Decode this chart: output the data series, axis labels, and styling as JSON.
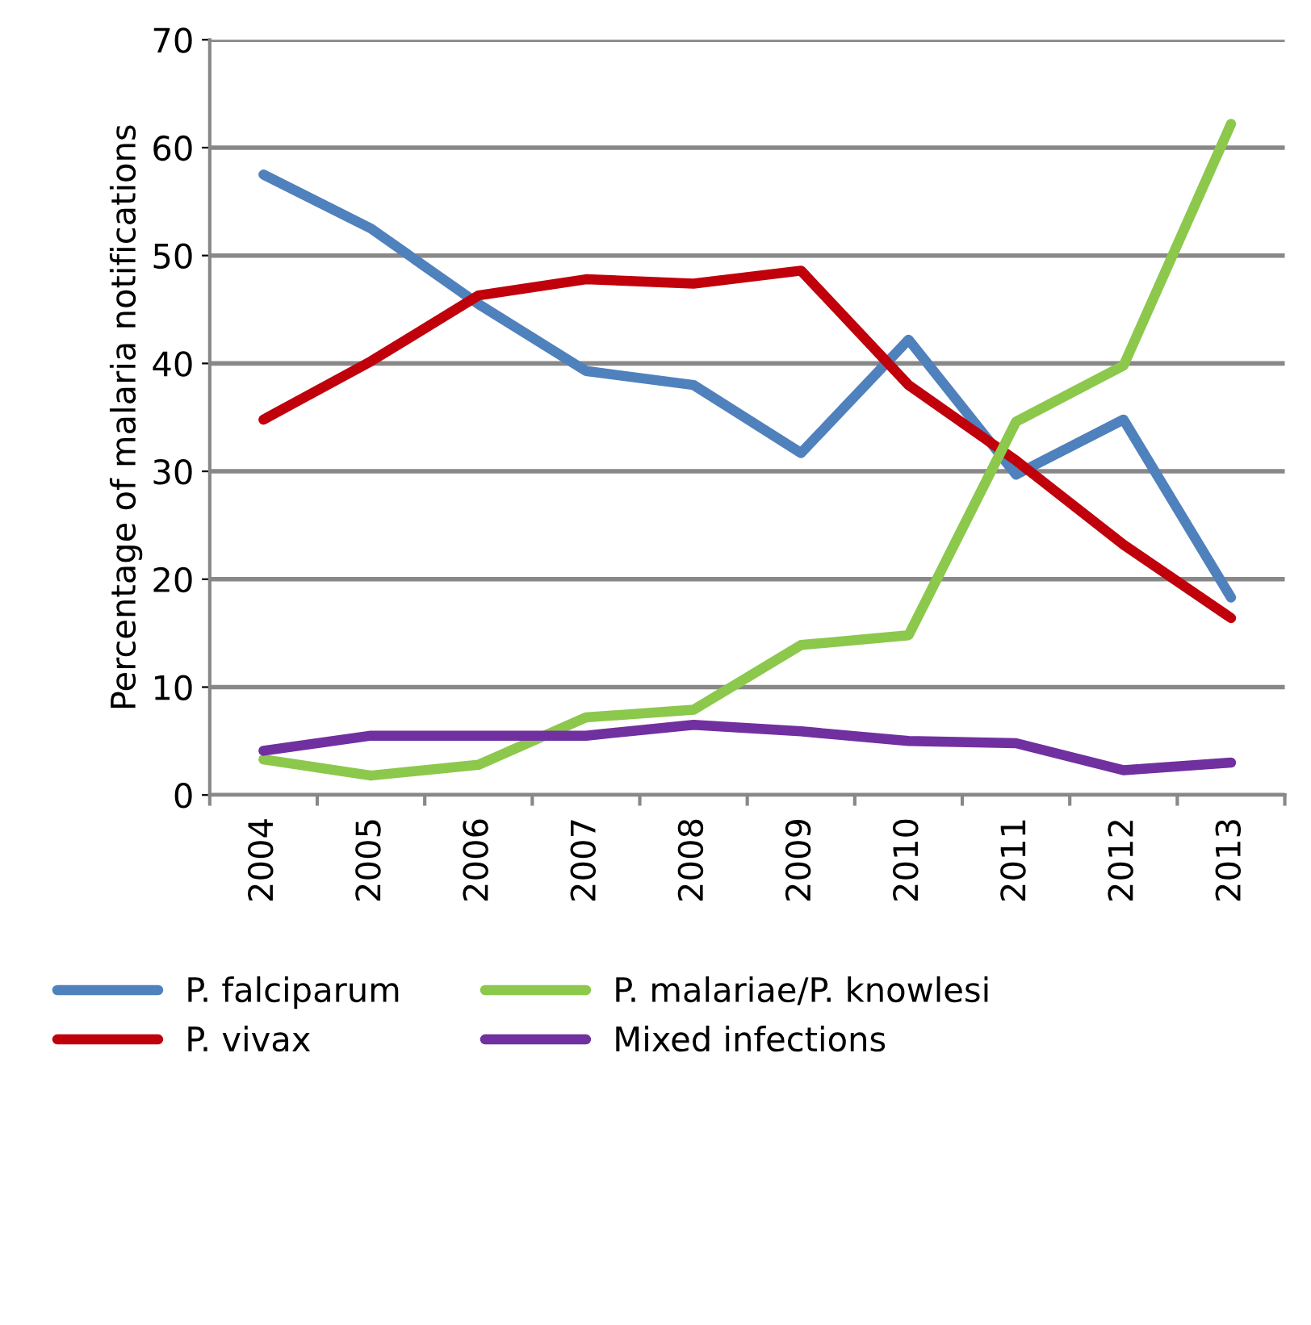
{
  "chart_data": {
    "type": "line",
    "ylabel": "Percentage of malaria notifications",
    "categories": [
      "2004",
      "2005",
      "2006",
      "2007",
      "2008",
      "2009",
      "2010",
      "2011",
      "2012",
      "2013"
    ],
    "series": [
      {
        "name": "P. falciparum",
        "color": "#4f81bd",
        "values": [
          57.5,
          52.5,
          45.5,
          39.3,
          38,
          31.7,
          42.2,
          29.7,
          34.8,
          18.3
        ]
      },
      {
        "name": "P. vivax",
        "color": "#c0000b",
        "values": [
          34.8,
          40.2,
          46.3,
          47.8,
          47.4,
          48.6,
          38,
          31,
          23.2,
          16.4
        ]
      },
      {
        "name": "P. malariae/P. knowlesi",
        "color": "#8cc84b",
        "values": [
          3.3,
          1.8,
          2.8,
          7.2,
          7.9,
          13.9,
          14.8,
          34.6,
          39.8,
          62.2
        ]
      },
      {
        "name": "Mixed infections",
        "color": "#7030a0",
        "values": [
          4.1,
          5.5,
          5.5,
          5.5,
          6.5,
          5.9,
          5,
          4.8,
          2.3,
          3
        ]
      }
    ],
    "ylim": [
      0,
      70
    ],
    "yticks": [
      0,
      10,
      20,
      30,
      40,
      50,
      60,
      70
    ],
    "grid": "y",
    "legend": "bottom",
    "marker": "none",
    "line_style": "solid"
  }
}
